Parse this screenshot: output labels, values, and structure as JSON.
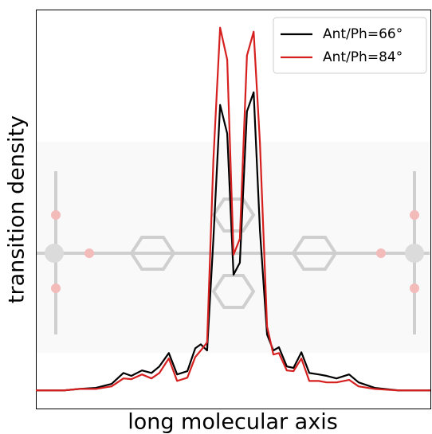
{
  "chart_data": {
    "type": "line",
    "xlabel": "long molecular axis",
    "ylabel": "transition density",
    "x": [
      0,
      7.1,
      11.1,
      15.2,
      19.2,
      22.2,
      24.2,
      26.9,
      29.3,
      31.3,
      33.7,
      35.8,
      38.4,
      40.4,
      41.8,
      43.4,
      45.0,
      46.7,
      48.5,
      50.1,
      51.7,
      53.5,
      55.2,
      56.8,
      58.6,
      60.2,
      61.6,
      63.6,
      65.3,
      67.3,
      69.3,
      71.7,
      73.7,
      76.2,
      79.4,
      81.8,
      85.9,
      91.9,
      100
    ],
    "series": [
      {
        "name": "Ant/Ph=66°",
        "color": "#000000",
        "values": [
          0,
          0,
          0.004,
          0.007,
          0.018,
          0.048,
          0.04,
          0.055,
          0.048,
          0.066,
          0.103,
          0.044,
          0.053,
          0.116,
          0.127,
          0.11,
          0.418,
          0.787,
          0.708,
          0.319,
          0.352,
          0.769,
          0.822,
          0.44,
          0.154,
          0.11,
          0.119,
          0.066,
          0.062,
          0.105,
          0.048,
          0.044,
          0.04,
          0.033,
          0.044,
          0.022,
          0.007,
          0,
          0
        ]
      },
      {
        "name": "Ant/Ph=84°",
        "color": "#d62020",
        "values": [
          0,
          0,
          0.004,
          0.004,
          0.011,
          0.033,
          0.031,
          0.044,
          0.033,
          0.048,
          0.088,
          0.026,
          0.035,
          0.092,
          0.11,
          0.132,
          0.637,
          1.0,
          0.912,
          0.374,
          0.418,
          0.923,
          0.989,
          0.681,
          0.176,
          0.099,
          0.103,
          0.055,
          0.053,
          0.088,
          0.026,
          0.026,
          0.022,
          0.022,
          0.029,
          0.011,
          0.004,
          0,
          0
        ]
      }
    ],
    "xlim": [
      0,
      100
    ],
    "ylim": [
      -0.05,
      1.05
    ],
    "legend": "upper right"
  }
}
